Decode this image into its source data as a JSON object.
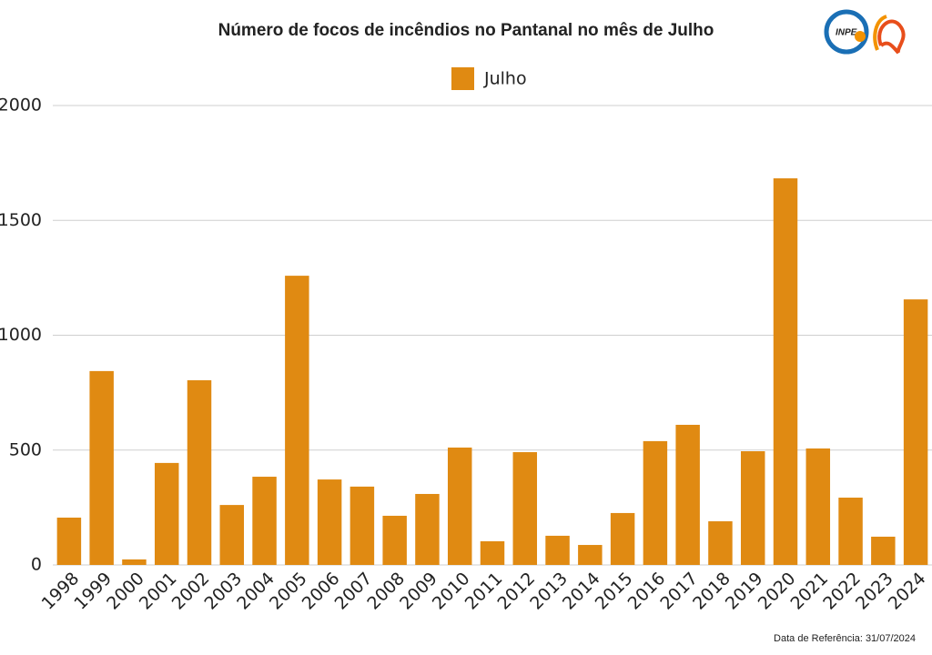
{
  "chart_data": {
    "type": "bar",
    "title": "Número de focos de incêndios no Pantanal no mês de Julho",
    "categories": [
      "1998",
      "1999",
      "2000",
      "2001",
      "2002",
      "2003",
      "2004",
      "2005",
      "2006",
      "2007",
      "2008",
      "2009",
      "2010",
      "2011",
      "2012",
      "2013",
      "2014",
      "2015",
      "2016",
      "2017",
      "2018",
      "2019",
      "2020",
      "2021",
      "2022",
      "2023",
      "2024"
    ],
    "series": [
      {
        "name": "Julho",
        "color": "#e08a12",
        "values": [
          206,
          844,
          24,
          444,
          804,
          261,
          384,
          1259,
          372,
          341,
          214,
          309,
          511,
          103,
          491,
          127,
          87,
          226,
          539,
          610,
          190,
          495,
          1683,
          507,
          293,
          123,
          1156
        ]
      }
    ],
    "ylim": [
      0,
      2000
    ],
    "yticks": [
      0,
      500,
      1000,
      1500,
      2000
    ],
    "grid": true,
    "footnote": "Data de Referência: 31/07/2024"
  }
}
